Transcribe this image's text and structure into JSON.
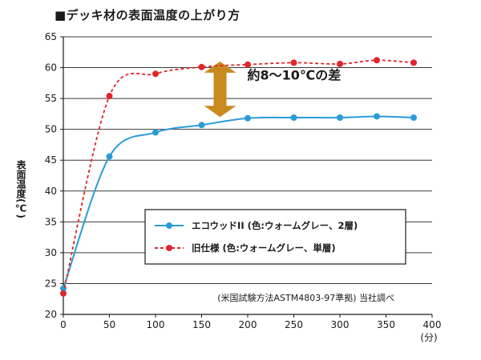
{
  "chart_data": {
    "type": "line",
    "title": "■デッキ材の表面温度の上がり方",
    "xlabel": "(分)",
    "ylabel": "表面温度(℃)",
    "xlim": [
      0,
      400
    ],
    "ylim": [
      20,
      65
    ],
    "x_ticks": [
      0,
      50,
      100,
      150,
      200,
      250,
      300,
      350,
      400
    ],
    "y_ticks": [
      20,
      25,
      30,
      35,
      40,
      45,
      50,
      55,
      60,
      65
    ],
    "grid": "horizontal",
    "legend": "center-right",
    "series": [
      {
        "name": "エコウッドII (色:ウォームグレー、2層)",
        "style": "solid",
        "color": "#2b9bd8",
        "x": [
          0,
          50,
          100,
          150,
          200,
          250,
          300,
          340,
          380
        ],
        "y": [
          24.2,
          45.6,
          49.5,
          50.7,
          51.8,
          51.9,
          51.9,
          52.1,
          51.9
        ]
      },
      {
        "name": "旧仕様 (色:ウォームグレー、単層)",
        "style": "dashed",
        "color": "#e0262b",
        "x": [
          0,
          50,
          100,
          150,
          200,
          250,
          300,
          340,
          380
        ],
        "y": [
          23.4,
          55.4,
          59.0,
          60.1,
          60.5,
          60.8,
          60.6,
          61.2,
          60.8
        ]
      }
    ],
    "annotations": [
      {
        "text": "約8〜10℃の差",
        "kind": "double-arrow",
        "color": "#c88a1e",
        "x": 170,
        "y_from": 52,
        "y_to": 61
      }
    ],
    "note": "(米国試験方法ASTM4803-97準拠) 当社調べ"
  }
}
